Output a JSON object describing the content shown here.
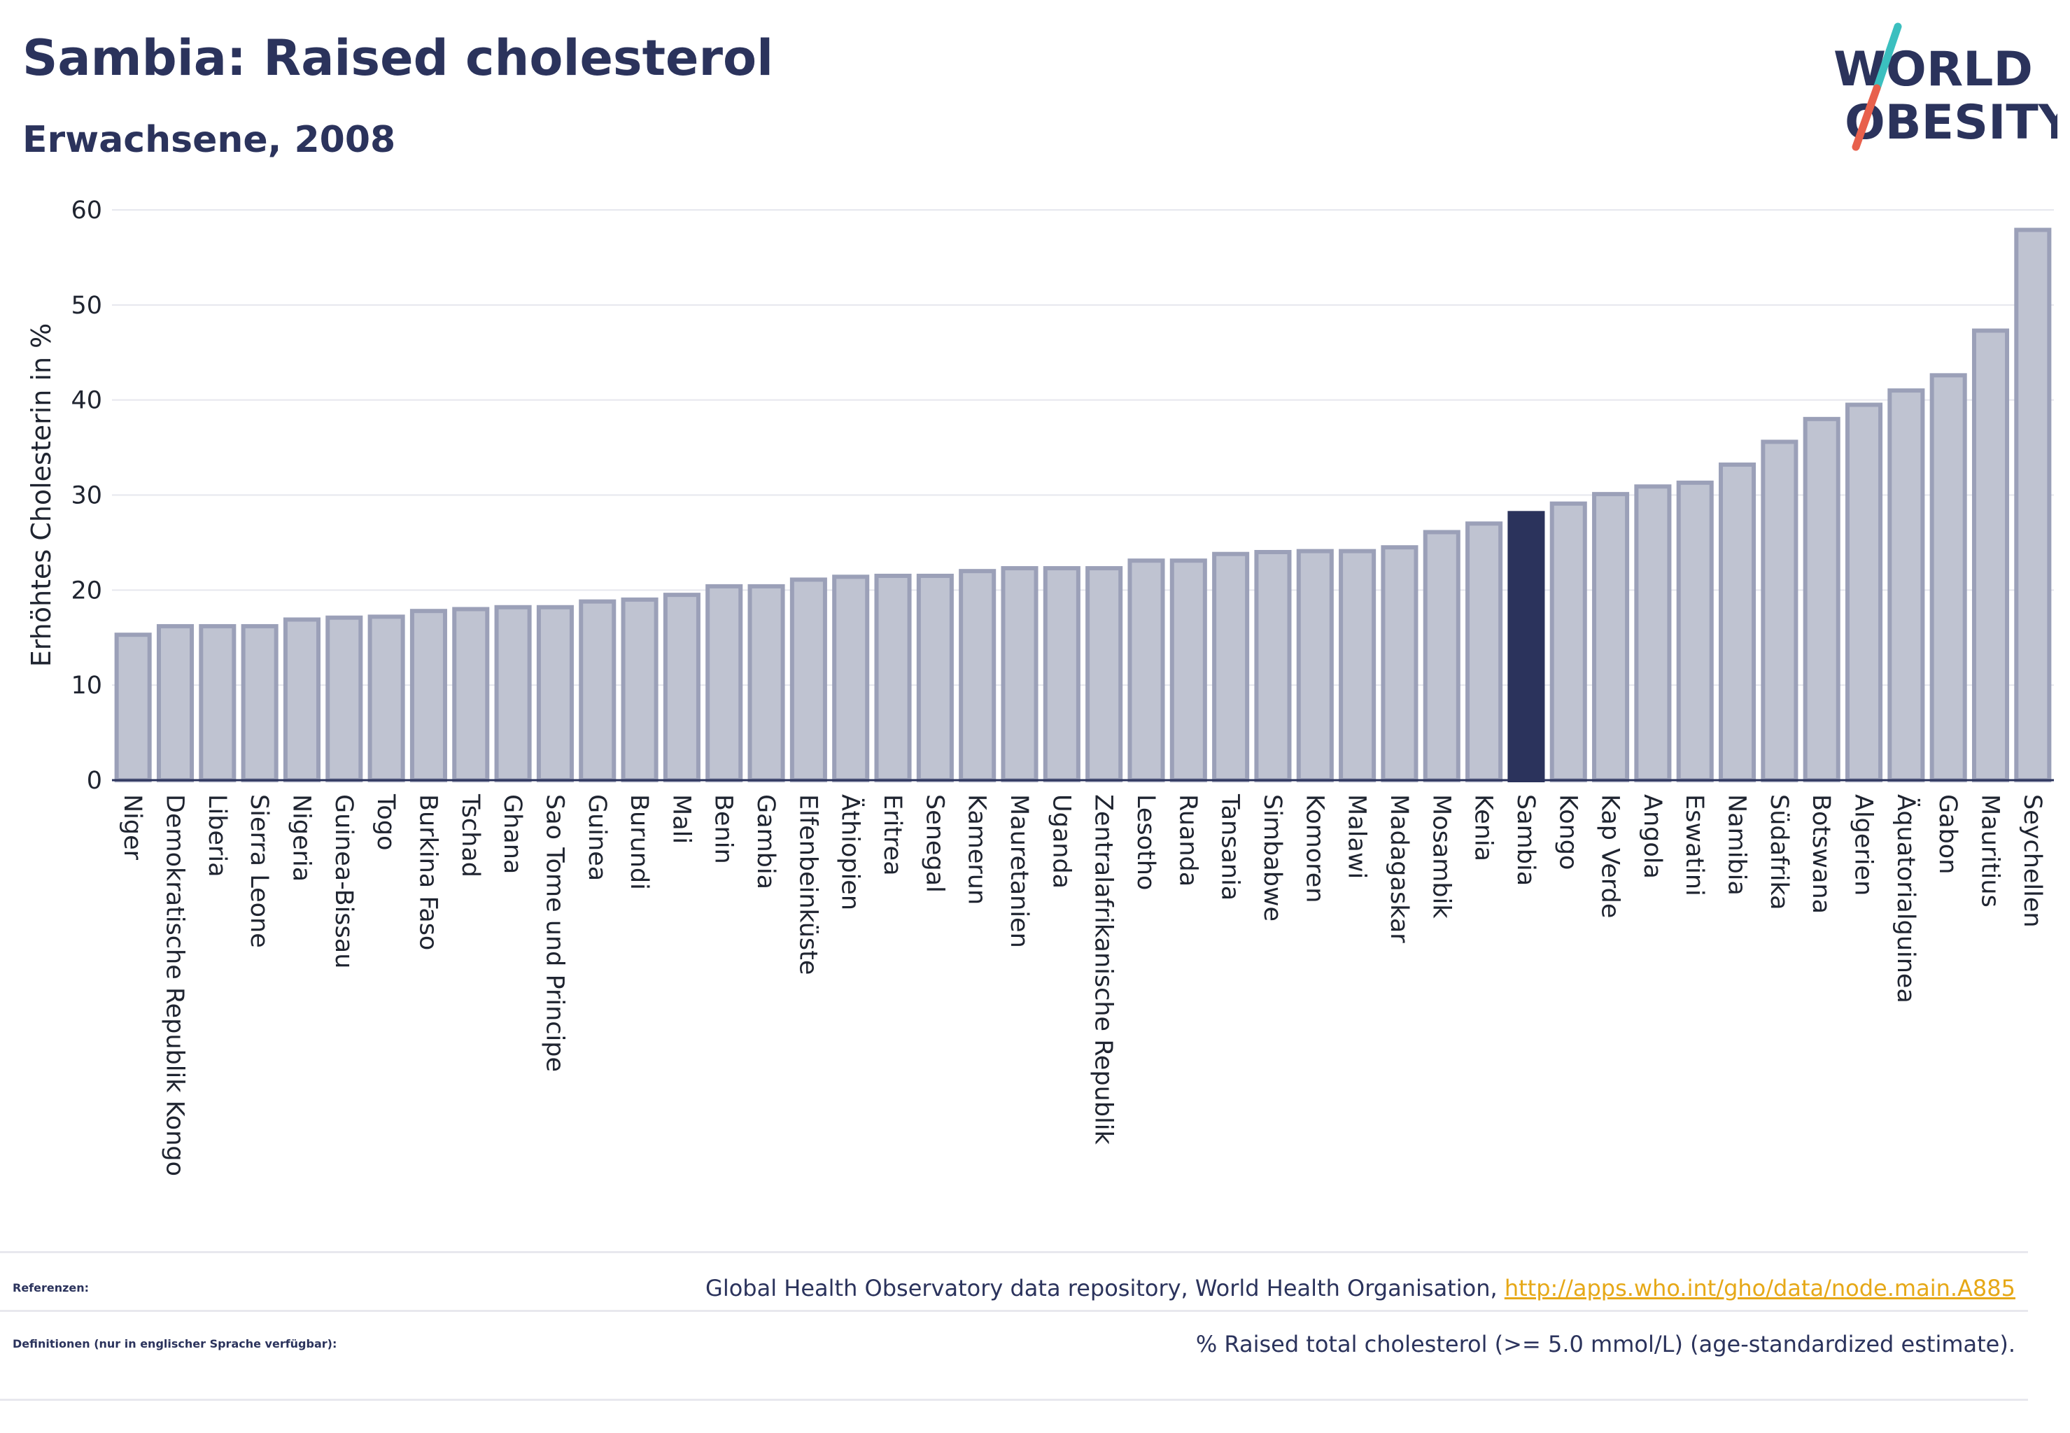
{
  "header": {
    "title": "Sambia: Raised cholesterol",
    "subtitle": "Erwachsene, 2008",
    "logo_text": "WORLD OBESITY"
  },
  "colors": {
    "bar_fill": "#bfc3d1",
    "bar_stroke": "#9ba0b8",
    "highlight": "#2b335c",
    "title": "#2b335c",
    "link": "#e6a817",
    "logo_accent_1": "#3bbfbf",
    "logo_accent_2": "#e8604c"
  },
  "chart_data": {
    "type": "bar",
    "title": "Sambia: Raised cholesterol",
    "subtitle": "Erwachsene, 2008",
    "xlabel": "",
    "ylabel": "Erhöhtes Cholesterin in %",
    "ylim": [
      0,
      60
    ],
    "yticks": [
      0,
      10,
      20,
      30,
      40,
      50,
      60
    ],
    "grid": true,
    "highlight": "Sambia",
    "categories": [
      "Niger",
      "Demokratische Republik Kongo",
      "Liberia",
      "Sierra Leone",
      "Nigeria",
      "Guinea-Bissau",
      "Togo",
      "Burkina Faso",
      "Tschad",
      "Ghana",
      "Sao Tome und Principe",
      "Guinea",
      "Burundi",
      "Mali",
      "Benin",
      "Gambia",
      "Elfenbeinküste",
      "Äthiopien",
      "Eritrea",
      "Senegal",
      "Kamerun",
      "Mauretanien",
      "Uganda",
      "Zentralafrikanische Republik",
      "Lesotho",
      "Ruanda",
      "Tansania",
      "Simbabwe",
      "Komoren",
      "Malawi",
      "Madagaskar",
      "Mosambik",
      "Kenia",
      "Sambia",
      "Kongo",
      "Kap Verde",
      "Angola",
      "Eswatini",
      "Namibia",
      "Südafrika",
      "Botswana",
      "Algerien",
      "Äquatorialguinea",
      "Gabon",
      "Mauritius",
      "Seychellen"
    ],
    "values": [
      15.3,
      16.2,
      16.2,
      16.2,
      16.9,
      17.1,
      17.2,
      17.8,
      18.0,
      18.2,
      18.2,
      18.8,
      19.0,
      19.5,
      20.4,
      20.4,
      21.1,
      21.4,
      21.5,
      21.5,
      22.0,
      22.3,
      22.3,
      22.3,
      23.1,
      23.1,
      23.8,
      24.0,
      24.1,
      24.1,
      24.5,
      26.1,
      27.0,
      28.1,
      29.1,
      30.1,
      30.9,
      31.3,
      33.2,
      35.6,
      38.0,
      39.5,
      41.0,
      42.6,
      47.3,
      57.9
    ]
  },
  "footer": {
    "references_label": "Referenzen:",
    "references_text": "Global Health Observatory data repository, World Health Organisation, ",
    "references_link": "http://apps.who.int/gho/data/node.main.A885",
    "definitions_label": "Definitionen (nur in englischer Sprache verfügbar):",
    "definitions_text": "% Raised total cholesterol (>= 5.0 mmol/L) (age-standardized estimate)."
  }
}
